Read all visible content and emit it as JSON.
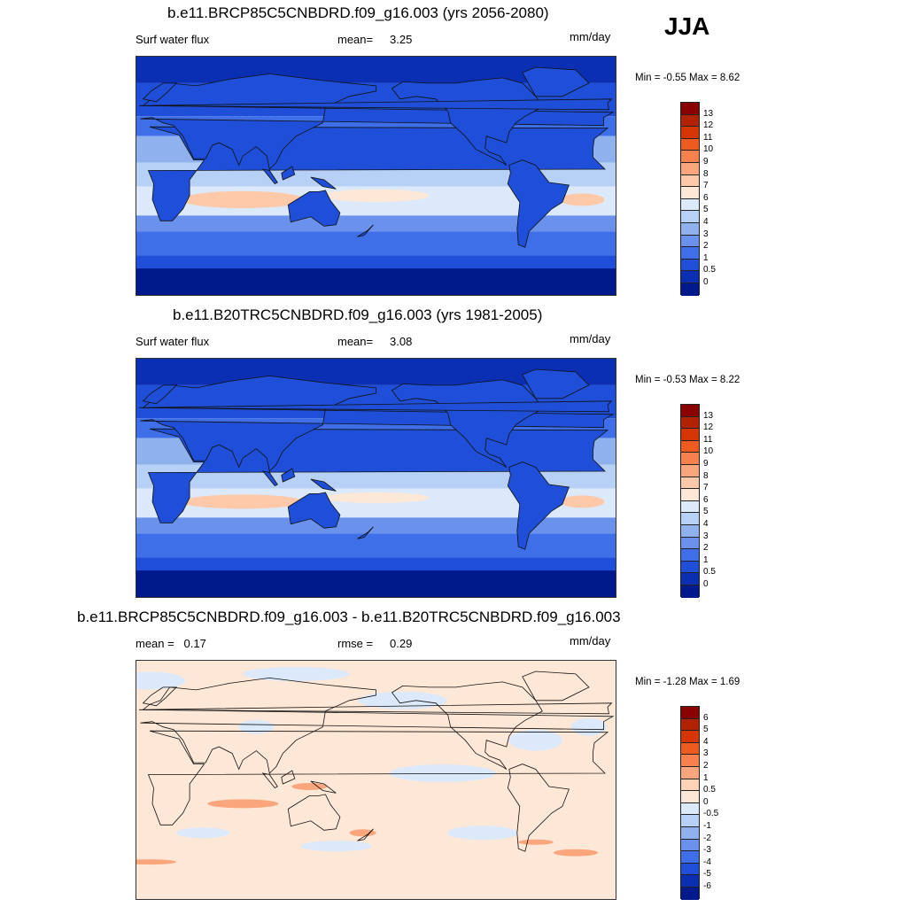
{
  "season": "JJA",
  "units": "mm/day",
  "panels": [
    {
      "title": "b.e11.BRCP85C5CNBDRD.f09_g16.003 (yrs 2056-2080)",
      "left_text": "Surf water flux",
      "mid_label": "mean=",
      "mid_value": "3.25",
      "minmax": "Min =  -0.55 Max =    8.62",
      "map_kind": "absolute"
    },
    {
      "title": "b.e11.B20TRC5CNBDRD.f09_g16.003 (yrs 1981-2005)",
      "left_text": "Surf water flux",
      "mid_label": "mean=",
      "mid_value": "3.08",
      "minmax": "Min =  -0.53 Max =    8.22",
      "map_kind": "absolute"
    },
    {
      "title": "b.e11.BRCP85C5CNBDRD.f09_g16.003 - b.e11.B20TRC5CNBDRD.f09_g16.003",
      "left_text": "mean =   0.17",
      "mid_label": "rmse =",
      "mid_value": "0.29",
      "minmax": "Min =  -1.28 Max =    1.69",
      "map_kind": "difference"
    }
  ],
  "colorbars": {
    "absolute": {
      "labels": [
        "13",
        "12",
        "11",
        "10",
        "9",
        "8",
        "7",
        "6",
        "5",
        "4",
        "3",
        "2",
        "1",
        "0.5",
        "0"
      ],
      "colors": [
        "#8b0000",
        "#b22200",
        "#d73500",
        "#ef5a1e",
        "#f7814c",
        "#fba57c",
        "#fdc9a8",
        "#fde8d8",
        "#dce9fb",
        "#b7d0f5",
        "#8fb2ef",
        "#6a92ec",
        "#3e6ee8",
        "#1f4fd8",
        "#0a2fb2",
        "#001a8c"
      ]
    },
    "difference": {
      "labels": [
        "6",
        "5",
        "4",
        "3",
        "2",
        "1",
        "0.5",
        "0",
        "-0.5",
        "-1",
        "-2",
        "-3",
        "-4",
        "-5",
        "-6"
      ],
      "colors": [
        "#8b0000",
        "#b22200",
        "#d73500",
        "#ef5a1e",
        "#f7814c",
        "#fba57c",
        "#fdd3b8",
        "#fde8d8",
        "#dce9fb",
        "#b7d0f5",
        "#8fb2ef",
        "#6a92ec",
        "#3e6ee8",
        "#1f4fd8",
        "#0a2fb2",
        "#001a8c"
      ]
    }
  }
}
